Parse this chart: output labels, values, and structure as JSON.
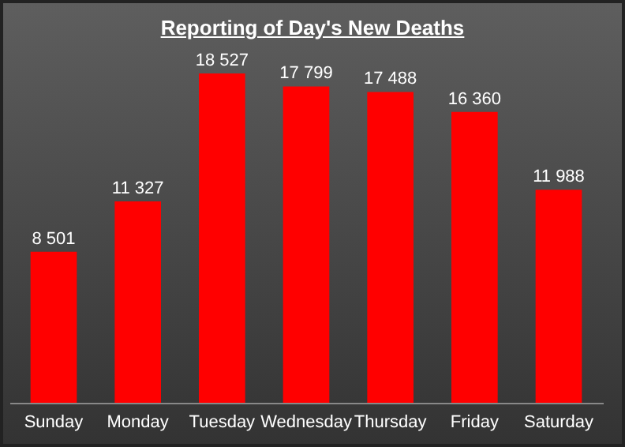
{
  "chart_data": {
    "type": "bar",
    "title": "Reporting of Day's New Deaths",
    "categories": [
      "Sunday",
      "Monday",
      "Tuesday",
      "Wednesday",
      "Thursday",
      "Friday",
      "Saturday"
    ],
    "values": [
      8501,
      11327,
      18527,
      17799,
      17488,
      16360,
      11988
    ],
    "value_labels": [
      "8 501",
      "11 327",
      "18 527",
      "17 799",
      "17 488",
      "16 360",
      "11 988"
    ],
    "color": "#ff0000"
  }
}
